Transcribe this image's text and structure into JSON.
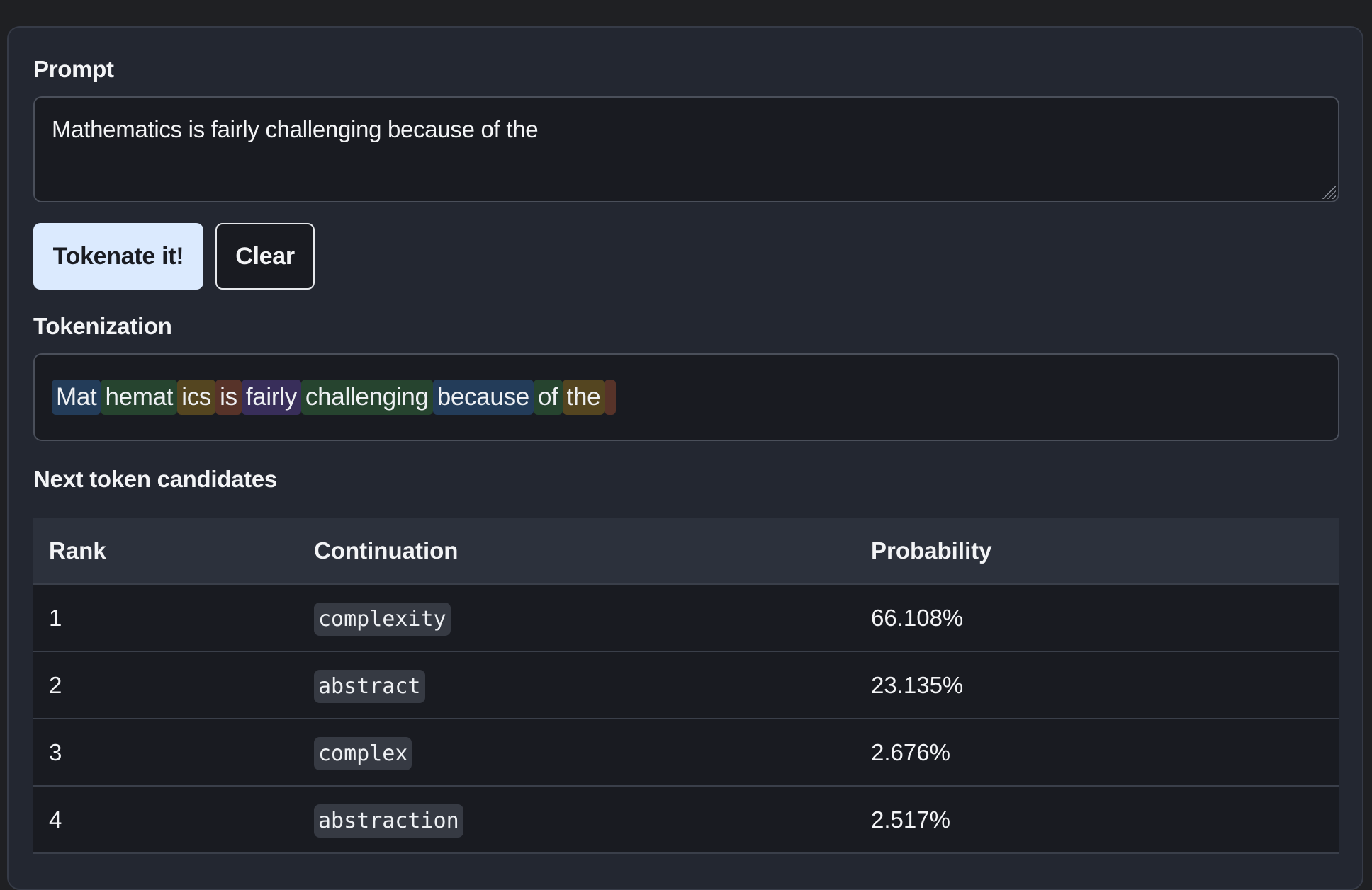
{
  "prompt": {
    "label": "Prompt",
    "value": "Mathematics is fairly challenging because of the"
  },
  "buttons": {
    "tokenate": "Tokenate it!",
    "clear": "Clear"
  },
  "tokenization": {
    "label": "Tokenization",
    "tokens": [
      {
        "text": "Mat",
        "color": "#233c59"
      },
      {
        "text": "hemat",
        "color": "#26442f"
      },
      {
        "text": "ics",
        "color": "#544520"
      },
      {
        "text": "is",
        "color": "#573329"
      },
      {
        "text": "fairly",
        "color": "#382e5a"
      },
      {
        "text": "challenging",
        "color": "#26442f"
      },
      {
        "text": "because",
        "color": "#233c59"
      },
      {
        "text": "of",
        "color": "#26442f"
      },
      {
        "text": "the",
        "color": "#544520"
      },
      {
        "text": " ",
        "color": "#573329"
      }
    ]
  },
  "candidates": {
    "label": "Next token candidates",
    "headers": [
      "Rank",
      "Continuation",
      "Probability"
    ],
    "rows": [
      {
        "rank": "1",
        "continuation": "complexity",
        "probability": "66.108%"
      },
      {
        "rank": "2",
        "continuation": "abstract",
        "probability": "23.135%"
      },
      {
        "rank": "3",
        "continuation": "complex",
        "probability": "2.676%"
      },
      {
        "rank": "4",
        "continuation": "abstraction",
        "probability": "2.517%"
      }
    ]
  }
}
